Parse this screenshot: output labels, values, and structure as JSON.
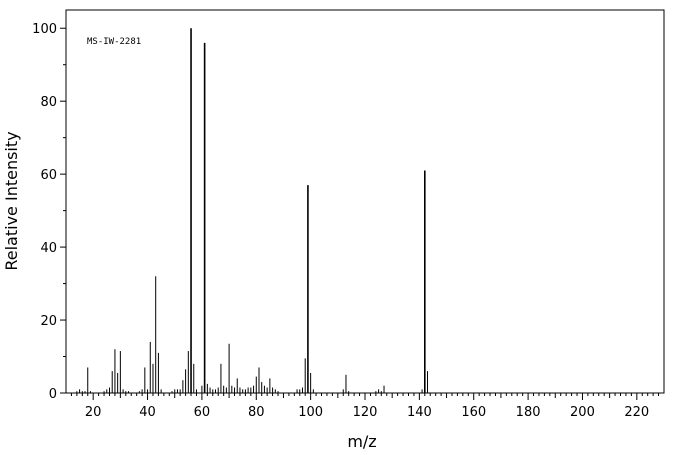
{
  "chart_data": {
    "type": "bar",
    "annotation": "MS-IW-2281",
    "xlabel": "m/z",
    "ylabel": "Relative Intensity",
    "xlim": [
      10,
      230
    ],
    "ylim": [
      0,
      105
    ],
    "x_ticks": [
      20,
      40,
      60,
      80,
      100,
      120,
      140,
      160,
      180,
      200,
      220
    ],
    "y_ticks": [
      0,
      20,
      40,
      60,
      80,
      100
    ],
    "grid": false,
    "legend": "none",
    "color": "#000000",
    "x": [
      14,
      15,
      16,
      17,
      18,
      19,
      24,
      25,
      26,
      27,
      28,
      29,
      30,
      31,
      32,
      33,
      37,
      38,
      39,
      40,
      41,
      42,
      43,
      44,
      45,
      49,
      50,
      51,
      52,
      53,
      54,
      55,
      56,
      57,
      58,
      60,
      61,
      62,
      63,
      64,
      65,
      66,
      67,
      68,
      69,
      70,
      71,
      72,
      73,
      74,
      75,
      76,
      77,
      78,
      79,
      80,
      81,
      82,
      83,
      84,
      85,
      86,
      87,
      88,
      95,
      96,
      97,
      98,
      99,
      100,
      101,
      112,
      113,
      114,
      124,
      125,
      126,
      127,
      141,
      142,
      143
    ],
    "y": [
      0.5,
      1.0,
      0.5,
      0.5,
      7.0,
      0.5,
      0.5,
      1.0,
      1.5,
      6.0,
      12.0,
      5.5,
      11.5,
      1.0,
      0.5,
      0.5,
      0.5,
      1.0,
      7.0,
      1.0,
      14.0,
      8.0,
      32.0,
      11.0,
      1.0,
      0.5,
      1.0,
      1.0,
      1.0,
      3.5,
      6.5,
      11.5,
      100.0,
      8.0,
      1.0,
      2.0,
      96.0,
      2.5,
      1.5,
      1.0,
      1.0,
      1.5,
      8.0,
      2.0,
      1.5,
      13.5,
      2.0,
      1.5,
      4.0,
      1.5,
      1.0,
      1.0,
      1.5,
      1.5,
      2.0,
      4.5,
      7.0,
      3.0,
      2.0,
      1.5,
      4.0,
      1.5,
      1.0,
      0.5,
      1.0,
      1.0,
      1.5,
      9.5,
      57.0,
      5.5,
      1.0,
      1.0,
      5.0,
      0.5,
      0.5,
      1.0,
      0.5,
      2.0,
      1.0,
      61.0,
      6.0
    ]
  }
}
